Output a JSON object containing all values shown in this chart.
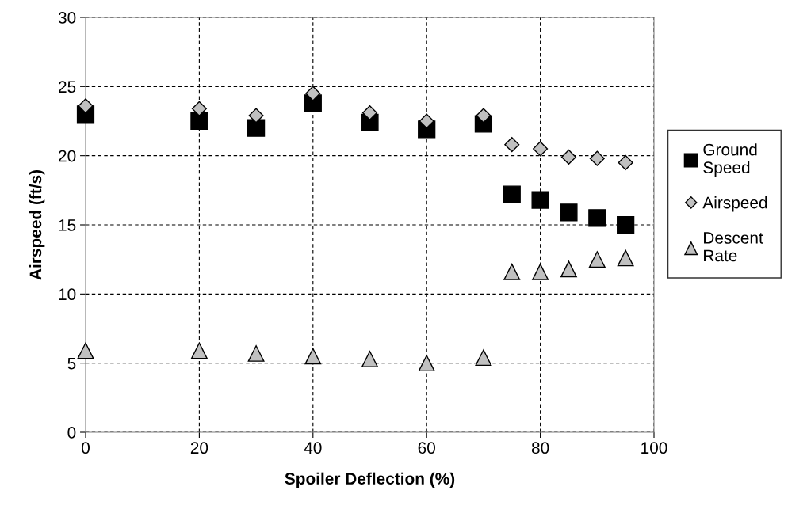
{
  "chart_data": {
    "type": "scatter",
    "xlabel": "Spoiler Deflection (%)",
    "ylabel": "Airspeed (ft/s)",
    "x": [
      0,
      20,
      30,
      40,
      50,
      60,
      70,
      75,
      80,
      85,
      90,
      95
    ],
    "series": [
      {
        "name": "Ground Speed",
        "color": "#000000",
        "marker": "square",
        "values": [
          23.0,
          22.5,
          22.0,
          23.8,
          22.4,
          21.9,
          22.3,
          17.2,
          16.8,
          15.9,
          15.5,
          15.0
        ]
      },
      {
        "name": "Airspeed",
        "color": "#c0c0c0",
        "marker": "diamond",
        "values": [
          23.6,
          23.4,
          22.9,
          24.5,
          23.1,
          22.5,
          22.9,
          20.8,
          20.5,
          19.9,
          19.8,
          19.5
        ]
      },
      {
        "name": "Descent Rate",
        "color": "#c0c0c0",
        "marker": "triangle",
        "values": [
          5.9,
          5.9,
          5.7,
          5.5,
          5.3,
          5.0,
          5.4,
          11.6,
          11.6,
          11.8,
          12.5,
          12.6
        ]
      }
    ],
    "xlim": [
      0,
      100
    ],
    "xticks": [
      0,
      20,
      40,
      60,
      80,
      100
    ],
    "ylim": [
      0,
      30
    ],
    "yticks": [
      0,
      5,
      10,
      15,
      20,
      25,
      30
    ],
    "grid": true,
    "legend": "right"
  }
}
